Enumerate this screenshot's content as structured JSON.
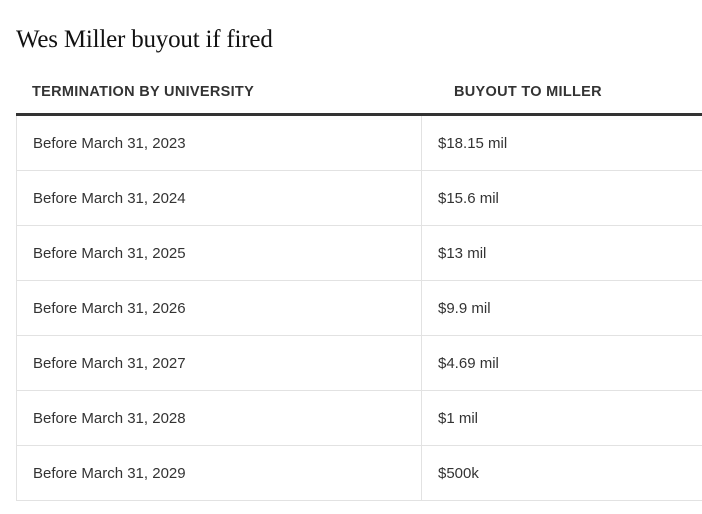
{
  "title": "Wes Miller buyout if fired",
  "columns": [
    "TERMINATION BY UNIVERSITY",
    "BUYOUT TO MILLER"
  ],
  "rows": [
    {
      "termination": "Before March 31, 2023",
      "buyout": "$18.15 mil"
    },
    {
      "termination": "Before March 31, 2024",
      "buyout": "$15.6 mil"
    },
    {
      "termination": "Before March 31, 2025",
      "buyout": "$13 mil"
    },
    {
      "termination": "Before March 31, 2026",
      "buyout": "$9.9 mil"
    },
    {
      "termination": "Before March 31, 2027",
      "buyout": "$4.69 mil"
    },
    {
      "termination": "Before March 31, 2028",
      "buyout": "$1 mil"
    },
    {
      "termination": "Before March 31, 2029",
      "buyout": "$500k"
    }
  ]
}
